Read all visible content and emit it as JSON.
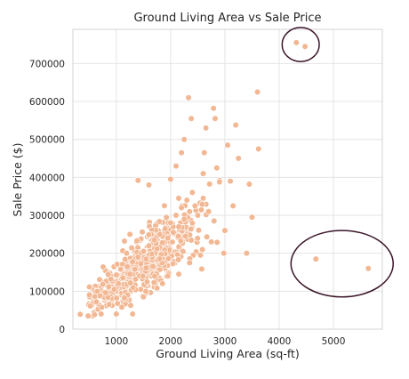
{
  "chart_data": {
    "type": "scatter",
    "title": "Ground Living Area vs Sale Price",
    "xlabel": "Ground Living Area (sq-ft)",
    "ylabel": "Sale Price ($)",
    "xlim": [
      200,
      5900
    ],
    "ylim": [
      0,
      790000
    ],
    "xticks": [
      1000,
      2000,
      3000,
      4000,
      5000
    ],
    "yticks": [
      0,
      100000,
      200000,
      300000,
      400000,
      500000,
      600000,
      700000
    ],
    "grid": true,
    "legend": "none",
    "colors": {
      "point": "#f2b793",
      "highlight": "#3a1428"
    },
    "outliers_top": [
      {
        "x": 4316,
        "y": 755000
      },
      {
        "x": 4476,
        "y": 745000
      }
    ],
    "outliers_right": [
      {
        "x": 4676,
        "y": 185000
      },
      {
        "x": 5642,
        "y": 160000
      }
    ],
    "sample_points": [
      {
        "x": 334,
        "y": 39300
      },
      {
        "x": 480,
        "y": 35000
      },
      {
        "x": 520,
        "y": 61000
      },
      {
        "x": 605,
        "y": 86000
      },
      {
        "x": 630,
        "y": 72000
      },
      {
        "x": 700,
        "y": 88000
      },
      {
        "x": 720,
        "y": 40000
      },
      {
        "x": 750,
        "y": 118000
      },
      {
        "x": 800,
        "y": 96000
      },
      {
        "x": 860,
        "y": 112000
      },
      {
        "x": 900,
        "y": 132000
      },
      {
        "x": 960,
        "y": 105000
      },
      {
        "x": 1000,
        "y": 143000
      },
      {
        "x": 1040,
        "y": 120000
      },
      {
        "x": 1080,
        "y": 158000
      },
      {
        "x": 1120,
        "y": 135000
      },
      {
        "x": 1150,
        "y": 82000
      },
      {
        "x": 1200,
        "y": 165000
      },
      {
        "x": 1250,
        "y": 145000
      },
      {
        "x": 1300,
        "y": 178000
      },
      {
        "x": 1340,
        "y": 158000
      },
      {
        "x": 1400,
        "y": 190000
      },
      {
        "x": 1450,
        "y": 172000
      },
      {
        "x": 1500,
        "y": 205000
      },
      {
        "x": 1550,
        "y": 185000
      },
      {
        "x": 1600,
        "y": 220000
      },
      {
        "x": 1650,
        "y": 198000
      },
      {
        "x": 1700,
        "y": 235000
      },
      {
        "x": 1750,
        "y": 212000
      },
      {
        "x": 1800,
        "y": 250000
      },
      {
        "x": 1850,
        "y": 228000
      },
      {
        "x": 1900,
        "y": 265000
      },
      {
        "x": 1950,
        "y": 240000
      },
      {
        "x": 2000,
        "y": 280000
      },
      {
        "x": 2050,
        "y": 255000
      },
      {
        "x": 2100,
        "y": 300000
      },
      {
        "x": 2150,
        "y": 270000
      },
      {
        "x": 2200,
        "y": 320000
      },
      {
        "x": 2250,
        "y": 290000
      },
      {
        "x": 2300,
        "y": 340000
      },
      {
        "x": 2350,
        "y": 310000
      },
      {
        "x": 2400,
        "y": 360000
      },
      {
        "x": 2450,
        "y": 325000
      },
      {
        "x": 2500,
        "y": 300000
      },
      {
        "x": 2600,
        "y": 345000
      },
      {
        "x": 2700,
        "y": 310000
      },
      {
        "x": 2800,
        "y": 285000
      },
      {
        "x": 1400,
        "y": 392000
      },
      {
        "x": 1600,
        "y": 380000
      },
      {
        "x": 1750,
        "y": 108000
      },
      {
        "x": 1850,
        "y": 120000
      },
      {
        "x": 2000,
        "y": 395000
      },
      {
        "x": 2100,
        "y": 430000
      },
      {
        "x": 2200,
        "y": 465000
      },
      {
        "x": 2250,
        "y": 500000
      },
      {
        "x": 2330,
        "y": 610000
      },
      {
        "x": 2380,
        "y": 555000
      },
      {
        "x": 2600,
        "y": 410000
      },
      {
        "x": 2620,
        "y": 465000
      },
      {
        "x": 2650,
        "y": 530000
      },
      {
        "x": 2790,
        "y": 582000
      },
      {
        "x": 2820,
        "y": 555000
      },
      {
        "x": 2850,
        "y": 425000
      },
      {
        "x": 2900,
        "y": 388000
      },
      {
        "x": 3000,
        "y": 260000
      },
      {
        "x": 3050,
        "y": 485000
      },
      {
        "x": 3100,
        "y": 390000
      },
      {
        "x": 3150,
        "y": 325000
      },
      {
        "x": 3200,
        "y": 538000
      },
      {
        "x": 3250,
        "y": 450000
      },
      {
        "x": 3400,
        "y": 200000
      },
      {
        "x": 3450,
        "y": 382000
      },
      {
        "x": 3500,
        "y": 295000
      },
      {
        "x": 3600,
        "y": 625000
      },
      {
        "x": 3620,
        "y": 475000
      },
      {
        "x": 2980,
        "y": 200000
      },
      {
        "x": 2750,
        "y": 230000
      },
      {
        "x": 2550,
        "y": 195000
      },
      {
        "x": 2350,
        "y": 175000
      },
      {
        "x": 2150,
        "y": 145000
      },
      {
        "x": 1950,
        "y": 140000
      },
      {
        "x": 1000,
        "y": 40000
      },
      {
        "x": 1300,
        "y": 40000
      },
      {
        "x": 1100,
        "y": 58000
      },
      {
        "x": 1500,
        "y": 85000
      },
      {
        "x": 1250,
        "y": 250000
      },
      {
        "x": 1150,
        "y": 232000
      }
    ]
  }
}
